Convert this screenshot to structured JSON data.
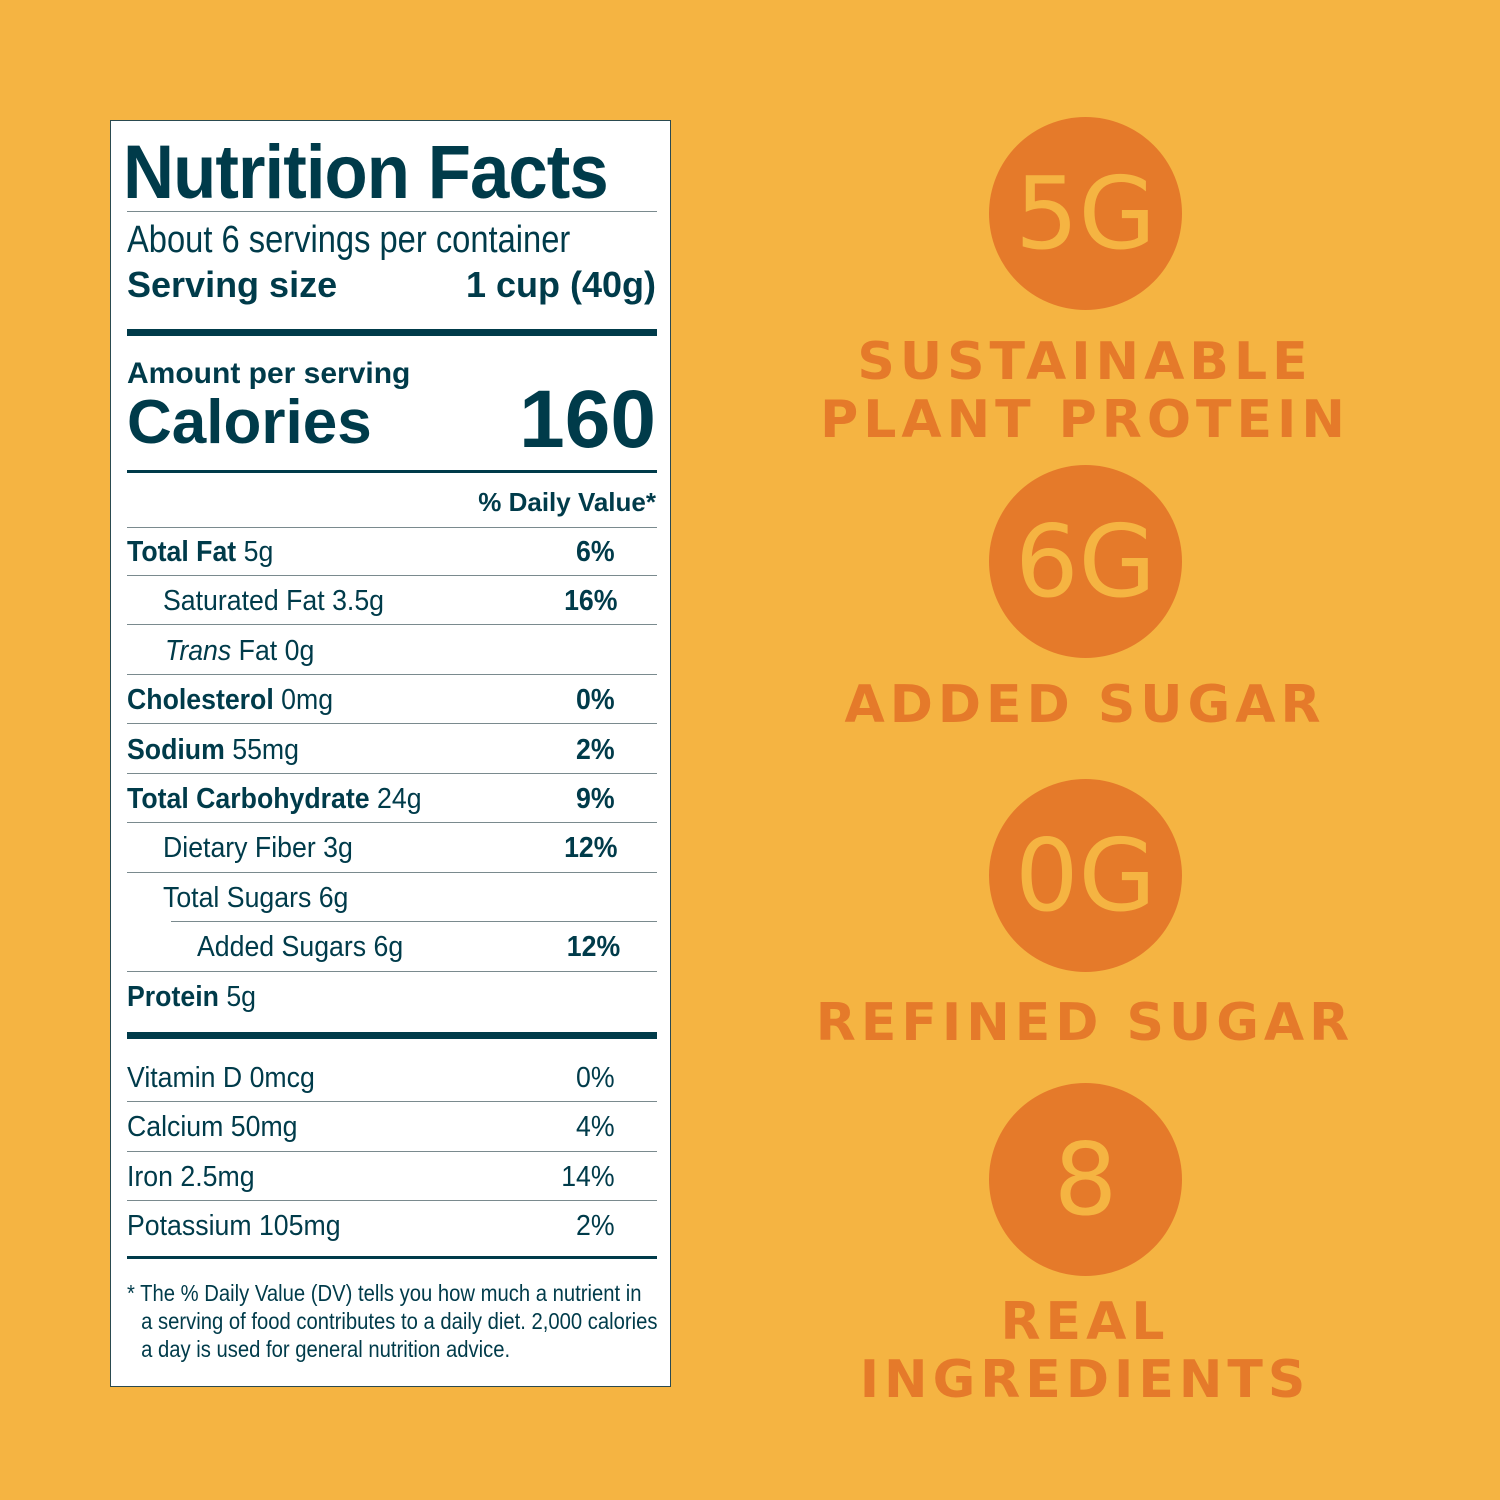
{
  "colors": {
    "background": "#F5B442",
    "accent": "#E57A2A",
    "ink": "#003B4A"
  },
  "label": {
    "title": "Nutrition Facts",
    "servings": "About 6 servings per container",
    "serving_size_label": "Serving size",
    "serving_size_value": "1 cup (40g)",
    "amount_per_serving": "Amount per serving",
    "calories_label": "Calories",
    "calories_value": "160",
    "dv_header": "% Daily Value*",
    "nutrients": [
      {
        "name": "Total Fat",
        "amount": "5g",
        "dv": "6%"
      },
      {
        "name": "Saturated Fat 3.5g",
        "amount": "",
        "dv": "16%"
      },
      {
        "name": "Trans",
        "amount": "Fat 0g",
        "dv": ""
      },
      {
        "name": "Cholesterol",
        "amount": "0mg",
        "dv": "0%"
      },
      {
        "name": "Sodium",
        "amount": "55mg",
        "dv": "2%"
      },
      {
        "name": "Total Carbohydrate",
        "amount": "24g",
        "dv": "9%"
      },
      {
        "name": "Dietary Fiber 3g",
        "amount": "",
        "dv": "12%"
      },
      {
        "name": "Total Sugars 6g",
        "amount": "",
        "dv": ""
      },
      {
        "name": "Added Sugars 6g",
        "amount": "",
        "dv": "12%"
      },
      {
        "name": "Protein",
        "amount": "5g",
        "dv": ""
      }
    ],
    "vitamins": [
      {
        "name": "Vitamin D 0mcg",
        "dv": "0%"
      },
      {
        "name": "Calcium 50mg",
        "dv": "4%"
      },
      {
        "name": "Iron 2.5mg",
        "dv": "14%"
      },
      {
        "name": "Potassium 105mg",
        "dv": "2%"
      }
    ],
    "footnote": [
      "* The % Daily Value (DV) tells you how much a nutrient in",
      "a serving of food contributes to a daily diet. 2,000 calories",
      "a day is used for general nutrition advice."
    ]
  },
  "claims": [
    {
      "value": "5G",
      "label_lines": [
        "SUSTAINABLE",
        "PLANT PROTEIN"
      ]
    },
    {
      "value": "6G",
      "label_lines": [
        "ADDED SUGAR"
      ]
    },
    {
      "value": "0G",
      "label_lines": [
        "REFINED SUGAR"
      ]
    },
    {
      "value": "8",
      "label_lines": [
        "REAL INGREDIENTS"
      ]
    }
  ]
}
